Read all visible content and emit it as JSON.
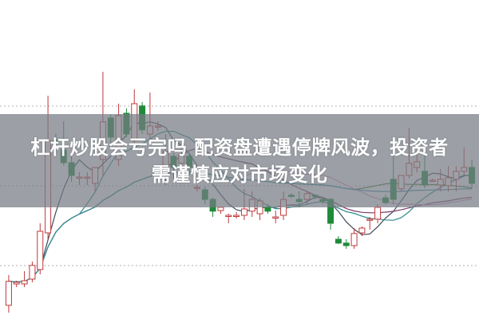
{
  "headline": {
    "line1": "杠杆炒股会亏完吗 配资盘遭遇停牌风波，投资者",
    "line2": "需谨慎应对市场变化"
  },
  "chart_data": {
    "type": "candlestick",
    "grid": "horizontal dotted",
    "colors": {
      "up": "#c0393b",
      "down": "#1f8a3a",
      "grid": "#b0b0b0",
      "ma": [
        "#3c4a5a",
        "#2a8a8a",
        "#7a3a6a",
        "#e090d0",
        "#4a7a3a",
        "#3a90a0"
      ]
    },
    "moving_average_periods": [
      5,
      10,
      20,
      30,
      45,
      60
    ],
    "ylim": [
      0,
      100
    ],
    "candles_ohlc": [
      [
        4.3,
        13.8,
        2.0,
        11.8
      ],
      [
        11.0,
        12.0,
        10.0,
        11.5
      ],
      [
        11.0,
        15.0,
        10.0,
        12.0
      ],
      [
        12.5,
        18.0,
        11.5,
        16.8
      ],
      [
        15.5,
        30.0,
        14.0,
        27.5
      ],
      [
        27.0,
        70.0,
        25.0,
        56.0
      ],
      [
        56.0,
        58.0,
        52.0,
        55.0
      ],
      [
        53.0,
        62.0,
        48.0,
        49.0
      ],
      [
        49.0,
        52.0,
        43.0,
        45.0
      ],
      [
        44.5,
        46.0,
        42.0,
        44.5
      ],
      [
        44.5,
        46.0,
        42.0,
        44.5
      ],
      [
        42.5,
        45.0,
        40.0,
        47.5
      ],
      [
        50.0,
        77.5,
        45.0,
        61.8
      ],
      [
        63.0,
        64.0,
        55.0,
        57.0
      ],
      [
        50.0,
        67.5,
        48.0,
        63.8
      ],
      [
        64.5,
        66.0,
        57.0,
        58.0
      ],
      [
        56.0,
        72.0,
        54.0,
        67.5
      ],
      [
        66.8,
        68.0,
        58.0,
        59.3
      ],
      [
        58.0,
        71.0,
        55.0,
        60.5
      ],
      [
        60.5,
        62.0,
        59.0,
        60.5
      ],
      [
        46.3,
        58.0,
        42.0,
        52.5
      ],
      [
        51.0,
        52.0,
        44.0,
        47.5
      ],
      [
        48.8,
        55.0,
        47.0,
        51.3
      ],
      [
        51.0,
        52.0,
        45.0,
        47.5
      ],
      [
        41.0,
        42.0,
        40.0,
        41.3
      ],
      [
        40.5,
        41.5,
        36.0,
        37.5
      ],
      [
        37.5,
        38.0,
        32.0,
        33.8
      ],
      [
        34.0,
        35.0,
        33.0,
        35.0
      ],
      [
        32.5,
        33.0,
        30.0,
        32.5
      ],
      [
        32.5,
        33.5,
        31.5,
        32.5
      ],
      [
        32.5,
        40.8,
        31.0,
        34.5
      ],
      [
        33.8,
        40.0,
        32.0,
        37.5
      ],
      [
        33.0,
        38.0,
        31.0,
        37.0
      ],
      [
        35.0,
        36.0,
        33.0,
        33.8
      ],
      [
        32.0,
        34.0,
        30.0,
        32.0
      ],
      [
        32.5,
        40.0,
        31.0,
        37.5
      ],
      [
        38.8,
        39.5,
        38.0,
        38.5
      ],
      [
        37.5,
        40.0,
        35.0,
        36.8
      ],
      [
        37.5,
        40.0,
        36.0,
        39.3
      ],
      [
        38.8,
        39.0,
        37.5,
        38.5
      ],
      [
        37.5,
        38.0,
        36.0,
        37.0
      ],
      [
        37.5,
        38.0,
        28.0,
        30.0
      ],
      [
        25.0,
        26.0,
        23.5,
        23.8
      ],
      [
        23.8,
        25.0,
        22.0,
        23.0
      ],
      [
        23.0,
        28.5,
        22.0,
        26.8
      ],
      [
        27.0,
        29.0,
        26.0,
        28.5
      ],
      [
        31.0,
        32.0,
        28.0,
        31.3
      ],
      [
        31.3,
        36.0,
        30.0,
        35.0
      ],
      [
        38.0,
        39.0,
        36.0,
        36.5
      ],
      [
        43.8,
        54.3,
        36.0,
        37.5
      ],
      [
        40.8,
        44.0,
        40.0,
        45.0
      ],
      [
        45.0,
        60.0,
        44.0,
        48.8
      ],
      [
        47.5,
        52.0,
        46.0,
        49.3
      ],
      [
        46.3,
        52.0,
        41.0,
        42.0
      ],
      [
        43.5,
        44.0,
        43.0,
        43.5
      ],
      [
        42.0,
        47.0,
        40.0,
        43.8
      ],
      [
        41.8,
        48.0,
        40.0,
        44.3
      ],
      [
        43.8,
        48.0,
        40.0,
        46.3
      ],
      [
        46.3,
        53.8,
        45.0,
        47.5
      ],
      [
        47.5,
        50.0,
        41.0,
        42.5
      ]
    ]
  }
}
